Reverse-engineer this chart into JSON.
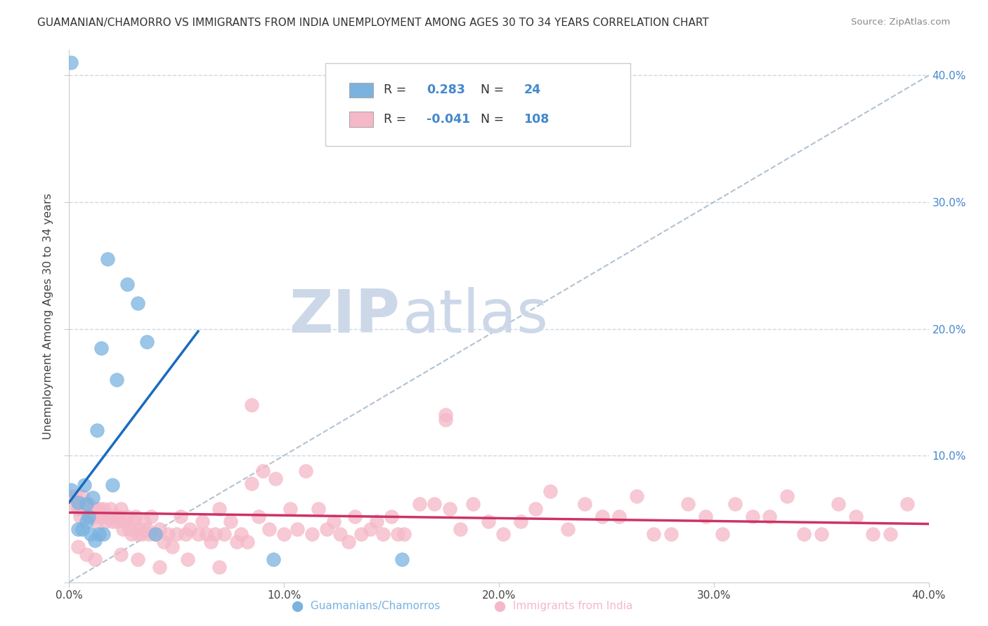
{
  "title": "GUAMANIAN/CHAMORRO VS IMMIGRANTS FROM INDIA UNEMPLOYMENT AMONG AGES 30 TO 34 YEARS CORRELATION CHART",
  "source": "Source: ZipAtlas.com",
  "ylabel": "Unemployment Among Ages 30 to 34 years",
  "xlim": [
    0.0,
    0.4
  ],
  "ylim": [
    0.0,
    0.42
  ],
  "xtick_vals": [
    0.0,
    0.1,
    0.2,
    0.3,
    0.4
  ],
  "ytick_vals": [
    0.0,
    0.1,
    0.2,
    0.3,
    0.4
  ],
  "xtick_labels": [
    "0.0%",
    "",
    "10.0%",
    "",
    "20.0%",
    "",
    "30.0%",
    "",
    "40.0%"
  ],
  "xtick_vals2": [
    0.0,
    0.05,
    0.1,
    0.15,
    0.2,
    0.25,
    0.3,
    0.35,
    0.4
  ],
  "right_ytick_labels": [
    "",
    "10.0%",
    "20.0%",
    "30.0%",
    "40.0%"
  ],
  "blue_color": "#7ab3e0",
  "pink_color": "#f5b8c8",
  "blue_line_color": "#1a6bbf",
  "pink_line_color": "#cc3366",
  "diagonal_color": "#aabccc",
  "watermark_zip": "ZIP",
  "watermark_atlas": "atlas",
  "watermark_color": "#ccd8e8",
  "legend_box_color": "#f0f0f0",
  "grid_color": "#c8d4dc",
  "background_color": "#ffffff",
  "blue_scatter": [
    [
      0.001,
      0.073
    ],
    [
      0.004,
      0.063
    ],
    [
      0.007,
      0.077
    ],
    [
      0.008,
      0.062
    ],
    [
      0.009,
      0.052
    ],
    [
      0.011,
      0.067
    ],
    [
      0.013,
      0.12
    ],
    [
      0.015,
      0.185
    ],
    [
      0.018,
      0.255
    ],
    [
      0.022,
      0.16
    ],
    [
      0.027,
      0.235
    ],
    [
      0.032,
      0.22
    ],
    [
      0.036,
      0.19
    ],
    [
      0.004,
      0.042
    ],
    [
      0.006,
      0.042
    ],
    [
      0.008,
      0.048
    ],
    [
      0.01,
      0.038
    ],
    [
      0.012,
      0.033
    ],
    [
      0.014,
      0.038
    ],
    [
      0.016,
      0.038
    ],
    [
      0.02,
      0.077
    ],
    [
      0.04,
      0.038
    ],
    [
      0.095,
      0.018
    ],
    [
      0.155,
      0.018
    ],
    [
      0.001,
      0.41
    ]
  ],
  "pink_scatter": [
    [
      0.001,
      0.068
    ],
    [
      0.002,
      0.062
    ],
    [
      0.003,
      0.068
    ],
    [
      0.004,
      0.058
    ],
    [
      0.004,
      0.062
    ],
    [
      0.005,
      0.052
    ],
    [
      0.006,
      0.068
    ],
    [
      0.006,
      0.058
    ],
    [
      0.007,
      0.062
    ],
    [
      0.008,
      0.058
    ],
    [
      0.008,
      0.056
    ],
    [
      0.009,
      0.062
    ],
    [
      0.01,
      0.052
    ],
    [
      0.01,
      0.058
    ],
    [
      0.011,
      0.052
    ],
    [
      0.012,
      0.058
    ],
    [
      0.013,
      0.048
    ],
    [
      0.013,
      0.052
    ],
    [
      0.014,
      0.058
    ],
    [
      0.015,
      0.052
    ],
    [
      0.016,
      0.058
    ],
    [
      0.017,
      0.052
    ],
    [
      0.017,
      0.048
    ],
    [
      0.018,
      0.052
    ],
    [
      0.019,
      0.058
    ],
    [
      0.02,
      0.048
    ],
    [
      0.021,
      0.052
    ],
    [
      0.022,
      0.048
    ],
    [
      0.023,
      0.052
    ],
    [
      0.024,
      0.058
    ],
    [
      0.025,
      0.042
    ],
    [
      0.026,
      0.048
    ],
    [
      0.027,
      0.052
    ],
    [
      0.028,
      0.042
    ],
    [
      0.029,
      0.038
    ],
    [
      0.03,
      0.048
    ],
    [
      0.031,
      0.052
    ],
    [
      0.032,
      0.038
    ],
    [
      0.033,
      0.042
    ],
    [
      0.034,
      0.038
    ],
    [
      0.035,
      0.048
    ],
    [
      0.036,
      0.042
    ],
    [
      0.037,
      0.038
    ],
    [
      0.038,
      0.052
    ],
    [
      0.04,
      0.038
    ],
    [
      0.042,
      0.042
    ],
    [
      0.044,
      0.032
    ],
    [
      0.046,
      0.038
    ],
    [
      0.048,
      0.028
    ],
    [
      0.05,
      0.038
    ],
    [
      0.052,
      0.052
    ],
    [
      0.054,
      0.038
    ],
    [
      0.056,
      0.042
    ],
    [
      0.06,
      0.038
    ],
    [
      0.062,
      0.048
    ],
    [
      0.064,
      0.038
    ],
    [
      0.066,
      0.032
    ],
    [
      0.068,
      0.038
    ],
    [
      0.07,
      0.058
    ],
    [
      0.072,
      0.038
    ],
    [
      0.075,
      0.048
    ],
    [
      0.078,
      0.032
    ],
    [
      0.08,
      0.038
    ],
    [
      0.083,
      0.032
    ],
    [
      0.085,
      0.078
    ],
    [
      0.088,
      0.052
    ],
    [
      0.09,
      0.088
    ],
    [
      0.093,
      0.042
    ],
    [
      0.096,
      0.082
    ],
    [
      0.1,
      0.038
    ],
    [
      0.103,
      0.058
    ],
    [
      0.106,
      0.042
    ],
    [
      0.11,
      0.088
    ],
    [
      0.113,
      0.038
    ],
    [
      0.116,
      0.058
    ],
    [
      0.12,
      0.042
    ],
    [
      0.123,
      0.048
    ],
    [
      0.126,
      0.038
    ],
    [
      0.13,
      0.032
    ],
    [
      0.133,
      0.052
    ],
    [
      0.136,
      0.038
    ],
    [
      0.14,
      0.042
    ],
    [
      0.143,
      0.048
    ],
    [
      0.146,
      0.038
    ],
    [
      0.15,
      0.052
    ],
    [
      0.153,
      0.038
    ],
    [
      0.156,
      0.038
    ],
    [
      0.163,
      0.062
    ],
    [
      0.17,
      0.062
    ],
    [
      0.177,
      0.058
    ],
    [
      0.182,
      0.042
    ],
    [
      0.188,
      0.062
    ],
    [
      0.195,
      0.048
    ],
    [
      0.202,
      0.038
    ],
    [
      0.21,
      0.048
    ],
    [
      0.217,
      0.058
    ],
    [
      0.224,
      0.072
    ],
    [
      0.232,
      0.042
    ],
    [
      0.24,
      0.062
    ],
    [
      0.248,
      0.052
    ],
    [
      0.256,
      0.052
    ],
    [
      0.264,
      0.068
    ],
    [
      0.272,
      0.038
    ],
    [
      0.28,
      0.038
    ],
    [
      0.288,
      0.062
    ],
    [
      0.296,
      0.052
    ],
    [
      0.304,
      0.038
    ],
    [
      0.175,
      0.128
    ],
    [
      0.175,
      0.132
    ],
    [
      0.004,
      0.028
    ],
    [
      0.008,
      0.022
    ],
    [
      0.012,
      0.018
    ],
    [
      0.024,
      0.022
    ],
    [
      0.032,
      0.018
    ],
    [
      0.042,
      0.012
    ],
    [
      0.055,
      0.018
    ],
    [
      0.07,
      0.012
    ],
    [
      0.085,
      0.14
    ],
    [
      0.31,
      0.062
    ],
    [
      0.318,
      0.052
    ],
    [
      0.326,
      0.052
    ],
    [
      0.334,
      0.068
    ],
    [
      0.342,
      0.038
    ],
    [
      0.35,
      0.038
    ],
    [
      0.358,
      0.062
    ],
    [
      0.366,
      0.052
    ],
    [
      0.374,
      0.038
    ],
    [
      0.382,
      0.038
    ],
    [
      0.39,
      0.062
    ]
  ],
  "blue_line": [
    [
      0.0,
      0.063
    ],
    [
      0.06,
      0.198
    ]
  ],
  "pink_line": [
    [
      0.0,
      0.055
    ],
    [
      0.4,
      0.046
    ]
  ],
  "diagonal_line": [
    [
      0.0,
      0.0
    ],
    [
      0.4,
      0.4
    ]
  ]
}
